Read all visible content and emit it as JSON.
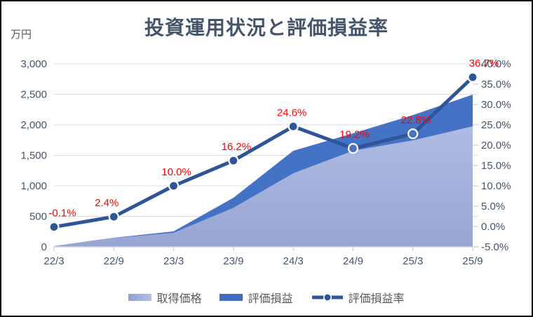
{
  "chart": {
    "title": "投資運用状況と評価損益率",
    "unit_label": "万円",
    "legend": [
      {
        "id": "acquisition",
        "label": "取得価格"
      },
      {
        "id": "gain",
        "label": "評価損益"
      },
      {
        "id": "rate",
        "label": "評価損益率"
      }
    ],
    "colors": {
      "title_text": "#44546a",
      "axis_text": "#44546a",
      "legend_text": "#595959",
      "data_label_red": "#ff0000",
      "gridline": "#dadce2",
      "axis_line": "#cfd3db",
      "area_light_top": "#b0bbe3",
      "area_light_bottom": "#98a5d3",
      "area_dark": "#4472c4",
      "rate_line": "#2e5597",
      "marker_ring": "#ffffff",
      "marker_hollow_fill": "#4d73bf"
    }
  },
  "chart_data": {
    "type": "combo (stacked area + line)",
    "categories": [
      "22/3",
      "22/9",
      "23/3",
      "23/9",
      "24/3",
      "24/9",
      "25/3",
      "25/9"
    ],
    "series": [
      {
        "name": "取得価格",
        "type": "area",
        "axis": "left",
        "values": [
          15,
          145,
          230,
          640,
          1205,
          1575,
          1745,
          1975
        ]
      },
      {
        "name": "評価損益",
        "type": "area",
        "axis": "left",
        "stacked_on": "取得価格",
        "values": [
          0,
          5,
          25,
          165,
          370,
          285,
          415,
          520
        ]
      },
      {
        "name": "評価損益率",
        "type": "line",
        "axis": "right",
        "values": [
          -0.1,
          2.4,
          10.0,
          16.2,
          24.6,
          19.2,
          22.8,
          36.7
        ],
        "labels": [
          "-0.1%",
          "2.4%",
          "10.0%",
          "16.2%",
          "24.6%",
          "19.2%",
          "22.8%",
          "36.7%"
        ],
        "marker_style": [
          "solid",
          "solid",
          "solid",
          "solid",
          "solid",
          "hollow",
          "hollow",
          "solid"
        ]
      }
    ],
    "left_axis": {
      "title": "万円",
      "min": 0,
      "max": 3000,
      "step": 500,
      "tick_labels": [
        "0",
        "500",
        "1,000",
        "1,500",
        "2,000",
        "2,500",
        "3,000"
      ]
    },
    "right_axis": {
      "min": -5,
      "max": 40,
      "step": 5,
      "tick_labels": [
        "-5.0%",
        "0.0%",
        "5.0%",
        "10.0%",
        "15.0%",
        "20.0%",
        "25.0%",
        "30.0%",
        "35.0%",
        "40.0%"
      ]
    },
    "grid": true,
    "legend_position": "bottom",
    "data_labels_series": "評価損益率"
  }
}
